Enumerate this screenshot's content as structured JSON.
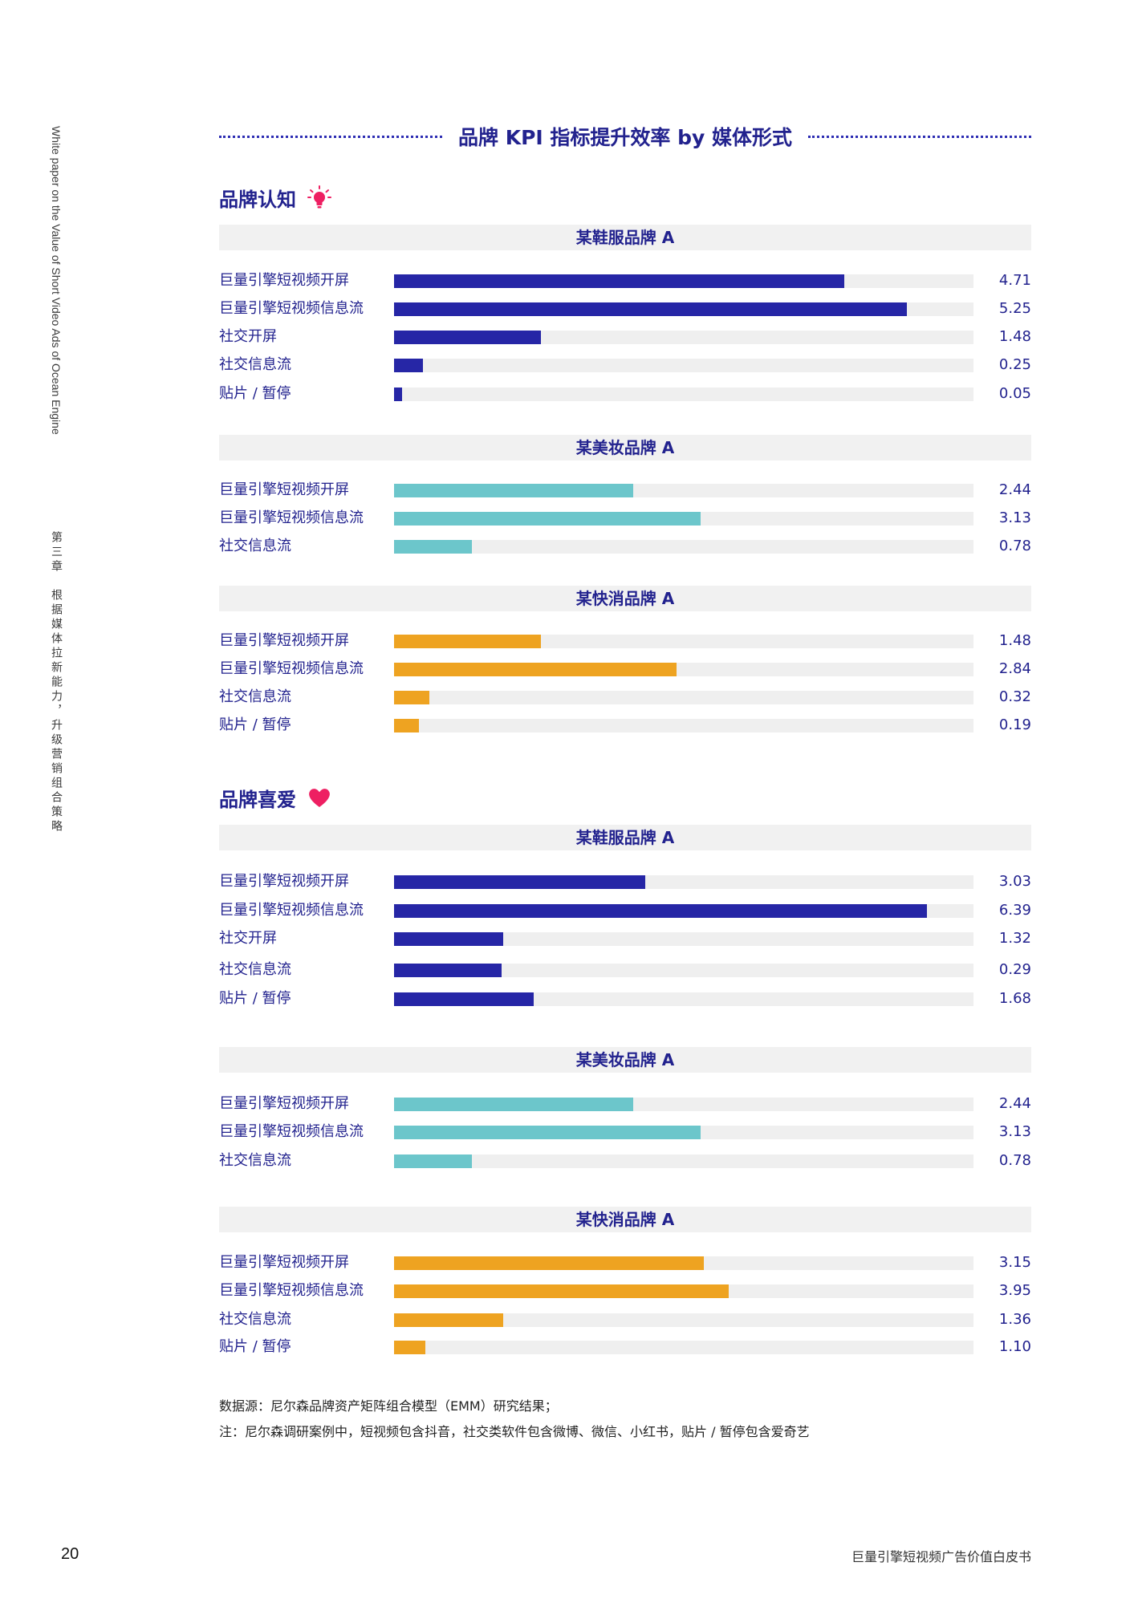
{
  "side_en": "White paper on the Value of Short Video Ads of Ocean Engine",
  "side_cn": "第三章　根据媒体拉新能力，升级营销组合策略",
  "page_title": "品牌 KPI 指标提升效率 by 媒体形式",
  "colors": {
    "navy": "#2626a6",
    "teal": "#6cc6cb",
    "orange": "#eea321",
    "pink": "#ee1f62",
    "title": "#22228e"
  },
  "sections": [
    {
      "title": "品牌认知",
      "icon": "lightbulb-icon",
      "groups": [
        {
          "name": "某鞋服品牌 A",
          "color": "navy",
          "rows": [
            {
              "label": "巨量引擎短视频开屏",
              "value": "4.71",
              "fill": 0.777
            },
            {
              "label": "巨量引擎短视频信息流",
              "value": "5.25",
              "fill": 0.885
            },
            {
              "label": "社交开屏",
              "value": "1.48",
              "fill": 0.254
            },
            {
              "label": "社交信息流",
              "value": "0.25",
              "fill": 0.05
            },
            {
              "label": "贴片 / 暂停",
              "value": "0.05",
              "fill": 0.014
            }
          ]
        },
        {
          "name": "某美妆品牌 A",
          "color": "teal",
          "rows": [
            {
              "label": "巨量引擎短视频开屏",
              "value": "2.44",
              "fill": 0.413
            },
            {
              "label": "巨量引擎短视频信息流",
              "value": "3.13",
              "fill": 0.529
            },
            {
              "label": "社交信息流",
              "value": "0.78",
              "fill": 0.134
            }
          ]
        },
        {
          "name": "某快消品牌 A",
          "color": "orange",
          "rows": [
            {
              "label": "巨量引擎短视频开屏",
              "value": "1.48",
              "fill": 0.254
            },
            {
              "label": "巨量引擎短视频信息流",
              "value": "2.84",
              "fill": 0.488
            },
            {
              "label": "社交信息流",
              "value": "0.32",
              "fill": 0.061
            },
            {
              "label": "贴片 / 暂停",
              "value": "0.19",
              "fill": 0.043
            }
          ]
        }
      ]
    },
    {
      "title": "品牌喜爱",
      "icon": "heart-icon",
      "groups": [
        {
          "name": "某鞋服品牌 A",
          "color": "navy",
          "rows": [
            {
              "label": "巨量引擎短视频开屏",
              "value": "3.03",
              "fill": 0.433
            },
            {
              "label": "巨量引擎短视频信息流",
              "value": "6.39",
              "fill": 0.92
            },
            {
              "label": "社交开屏",
              "value": "1.32",
              "fill": 0.188
            },
            {
              "label": "社交信息流",
              "value": "0.29",
              "fill": 0.185
            },
            {
              "label": "贴片 / 暂停",
              "value": "1.68",
              "fill": 0.241
            }
          ]
        },
        {
          "name": "某美妆品牌 A",
          "color": "teal",
          "rows": [
            {
              "label": "巨量引擎短视频开屏",
              "value": "2.44",
              "fill": 0.413
            },
            {
              "label": "巨量引擎短视频信息流",
              "value": "3.13",
              "fill": 0.529
            },
            {
              "label": "社交信息流",
              "value": "0.78",
              "fill": 0.134
            }
          ]
        },
        {
          "name": "某快消品牌 A",
          "color": "orange",
          "rows": [
            {
              "label": "巨量引擎短视频开屏",
              "value": "3.15",
              "fill": 0.534
            },
            {
              "label": "巨量引擎短视频信息流",
              "value": "3.95",
              "fill": 0.578
            },
            {
              "label": "社交信息流",
              "value": "1.36",
              "fill": 0.188
            },
            {
              "label": "贴片 / 暂停",
              "value": "1.10",
              "fill": 0.054
            }
          ]
        }
      ]
    }
  ],
  "notes": [
    "数据源：尼尔森品牌资产矩阵组合模型（EMM）研究结果；",
    "注：尼尔森调研案例中，短视频包含抖音，社交类软件包含微博、微信、小红书，贴片 / 暂停包含爱奇艺"
  ],
  "footer": {
    "page_number": "20",
    "title": "巨量引擎短视频广告价值白皮书"
  },
  "chart_data": [
    {
      "type": "bar",
      "orientation": "horizontal",
      "title": "品牌认知 · 某鞋服品牌 A",
      "categories": [
        "巨量引擎短视频开屏",
        "巨量引擎短视频信息流",
        "社交开屏",
        "社交信息流",
        "贴片 / 暂停"
      ],
      "values": [
        4.71,
        5.25,
        1.48,
        0.25,
        0.05
      ],
      "grid": false
    },
    {
      "type": "bar",
      "orientation": "horizontal",
      "title": "品牌认知 · 某美妆品牌 A",
      "categories": [
        "巨量引擎短视频开屏",
        "巨量引擎短视频信息流",
        "社交信息流"
      ],
      "values": [
        2.44,
        3.13,
        0.78
      ],
      "grid": false
    },
    {
      "type": "bar",
      "orientation": "horizontal",
      "title": "品牌认知 · 某快消品牌 A",
      "categories": [
        "巨量引擎短视频开屏",
        "巨量引擎短视频信息流",
        "社交信息流",
        "贴片 / 暂停"
      ],
      "values": [
        1.48,
        2.84,
        0.32,
        0.19
      ],
      "grid": false
    },
    {
      "type": "bar",
      "orientation": "horizontal",
      "title": "品牌喜爱 · 某鞋服品牌 A",
      "categories": [
        "巨量引擎短视频开屏",
        "巨量引擎短视频信息流",
        "社交开屏",
        "社交信息流",
        "贴片 / 暂停"
      ],
      "values": [
        3.03,
        6.39,
        1.32,
        0.29,
        1.68
      ],
      "grid": false
    },
    {
      "type": "bar",
      "orientation": "horizontal",
      "title": "品牌喜爱 · 某美妆品牌 A",
      "categories": [
        "巨量引擎短视频开屏",
        "巨量引擎短视频信息流",
        "社交信息流"
      ],
      "values": [
        2.44,
        3.13,
        0.78
      ],
      "grid": false
    },
    {
      "type": "bar",
      "orientation": "horizontal",
      "title": "品牌喜爱 · 某快消品牌 A",
      "categories": [
        "巨量引擎短视频开屏",
        "巨量引擎短视频信息流",
        "社交信息流",
        "贴片 / 暂停"
      ],
      "values": [
        3.15,
        3.95,
        1.36,
        1.1
      ],
      "grid": false
    }
  ]
}
